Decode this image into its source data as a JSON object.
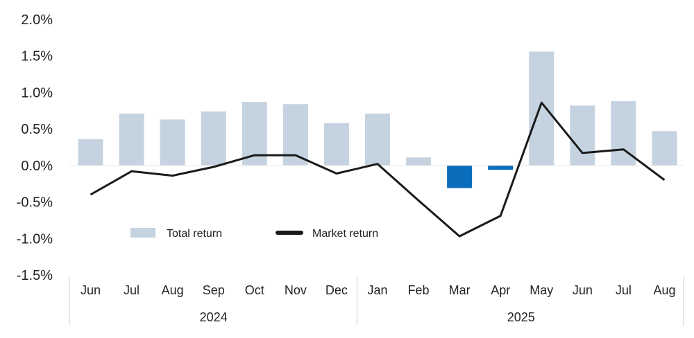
{
  "chart_data": {
    "type": "bar",
    "categories": [
      "Jun",
      "Jul",
      "Aug",
      "Sep",
      "Oct",
      "Nov",
      "Dec",
      "Jan",
      "Feb",
      "Mar",
      "Apr",
      "May",
      "Jun",
      "Jul",
      "Aug"
    ],
    "groups": [
      {
        "label": "2024",
        "start": 0,
        "end": 6
      },
      {
        "label": "2025",
        "start": 7,
        "end": 14
      }
    ],
    "series": [
      {
        "name": "Total return",
        "kind": "bar",
        "values": [
          0.36,
          0.71,
          0.63,
          0.74,
          0.87,
          0.84,
          0.58,
          0.71,
          0.11,
          -0.31,
          -0.06,
          1.56,
          0.82,
          0.88,
          0.47
        ],
        "color": "#c5d3e1",
        "negative_color": "#0a6ebd"
      },
      {
        "name": "Market return",
        "kind": "line",
        "values": [
          -0.4,
          -0.08,
          -0.14,
          -0.02,
          0.14,
          0.14,
          -0.11,
          0.02,
          -0.48,
          -0.97,
          -0.69,
          0.86,
          0.17,
          0.22,
          -0.2
        ],
        "color": "#1a1a1a"
      }
    ],
    "yticks": [
      "2.0%",
      "1.5%",
      "1.0%",
      "0.5%",
      "0.0%",
      "-0.5%",
      "-1.0%",
      "-1.5%"
    ],
    "ylim": [
      -1.5,
      2.0
    ],
    "legend": {
      "placement": "lower-left inside plot"
    },
    "grid": false,
    "title": "",
    "xlabel": "",
    "ylabel": ""
  }
}
